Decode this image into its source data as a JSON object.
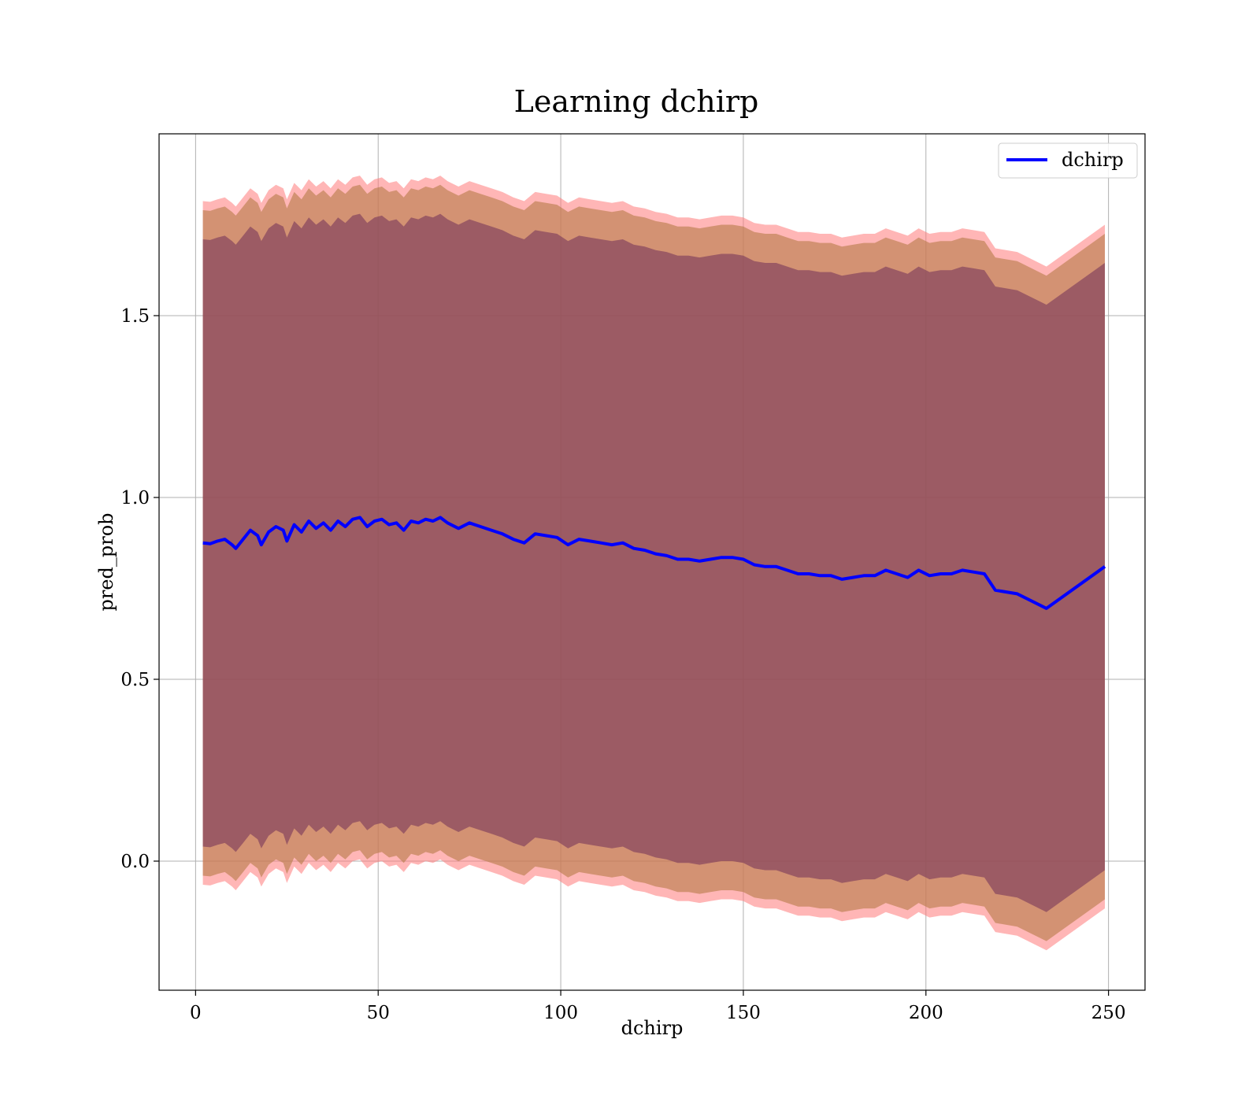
{
  "chart_data": {
    "type": "line",
    "title": "Learning dchirp",
    "xlabel": "dchirp",
    "ylabel": "pred_prob",
    "xlim": [
      -10,
      260
    ],
    "ylim": [
      -0.355,
      2.0
    ],
    "xticks": [
      0,
      50,
      100,
      150,
      200,
      250
    ],
    "yticks": [
      0.0,
      0.5,
      1.0,
      1.5
    ],
    "xtick_labels": [
      "0",
      "50",
      "100",
      "150",
      "200",
      "250"
    ],
    "ytick_labels": [
      "0.0",
      "0.5",
      "1.0",
      "1.5"
    ],
    "grid": true,
    "legend_position": "top-right",
    "series": [
      {
        "name": "dchirp",
        "color": "#0000ff",
        "x": [
          2,
          4,
          6,
          8,
          10,
          11,
          13,
          15,
          17,
          18,
          20,
          22,
          24,
          25,
          27,
          29,
          31,
          33,
          35,
          37,
          39,
          41,
          43,
          45,
          47,
          49,
          51,
          53,
          55,
          57,
          59,
          61,
          63,
          65,
          67,
          69,
          72,
          75,
          78,
          81,
          84,
          87,
          90,
          93,
          96,
          99,
          102,
          105,
          108,
          111,
          114,
          117,
          120,
          123,
          126,
          129,
          132,
          135,
          138,
          141,
          144,
          147,
          150,
          153,
          156,
          159,
          162,
          165,
          168,
          171,
          174,
          177,
          180,
          183,
          186,
          189,
          192,
          195,
          198,
          201,
          204,
          207,
          210,
          213,
          216,
          219,
          225,
          233,
          249
        ],
        "y": [
          0.875,
          0.873,
          0.88,
          0.885,
          0.87,
          0.86,
          0.885,
          0.91,
          0.895,
          0.87,
          0.905,
          0.92,
          0.91,
          0.88,
          0.925,
          0.905,
          0.935,
          0.915,
          0.93,
          0.91,
          0.935,
          0.92,
          0.94,
          0.945,
          0.92,
          0.935,
          0.94,
          0.925,
          0.93,
          0.91,
          0.935,
          0.93,
          0.94,
          0.935,
          0.945,
          0.93,
          0.915,
          0.93,
          0.92,
          0.91,
          0.9,
          0.885,
          0.875,
          0.9,
          0.895,
          0.89,
          0.87,
          0.885,
          0.88,
          0.875,
          0.87,
          0.875,
          0.86,
          0.855,
          0.845,
          0.84,
          0.83,
          0.83,
          0.825,
          0.83,
          0.835,
          0.835,
          0.83,
          0.815,
          0.81,
          0.81,
          0.8,
          0.79,
          0.79,
          0.785,
          0.785,
          0.775,
          0.78,
          0.785,
          0.785,
          0.8,
          0.79,
          0.78,
          0.8,
          0.785,
          0.79,
          0.79,
          0.8,
          0.795,
          0.79,
          0.745,
          0.735,
          0.695,
          0.81
        ]
      }
    ],
    "bands": [
      {
        "name": "outer",
        "color": "#ff7a7a",
        "opacity": 0.55,
        "half_width": 0.94
      },
      {
        "name": "middle",
        "color": "#b87d4b",
        "opacity": 0.62,
        "half_width": 0.915
      },
      {
        "name": "inner",
        "color": "#7b3a5a",
        "opacity": 0.62,
        "half_width": 0.835
      }
    ]
  }
}
